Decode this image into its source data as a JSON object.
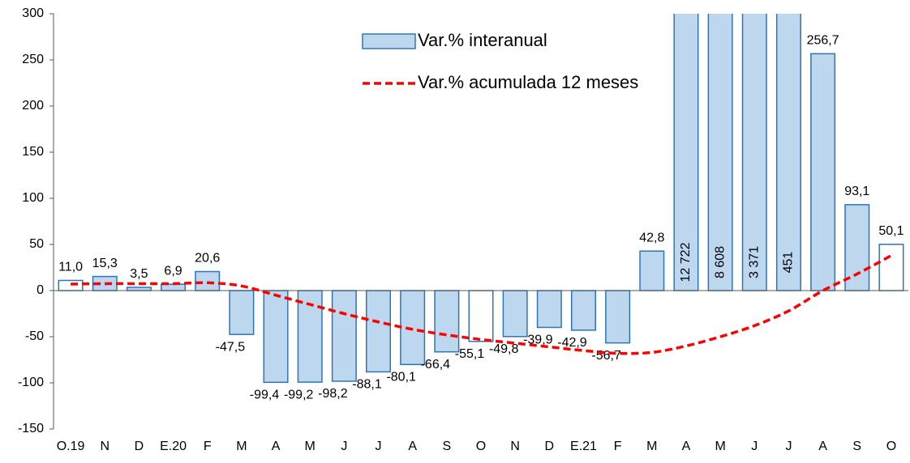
{
  "chart_data": {
    "type": "bar",
    "categories": [
      "O.19",
      "N",
      "D",
      "E.20",
      "F",
      "M",
      "A",
      "M",
      "J",
      "J",
      "A",
      "S",
      "O",
      "N",
      "D",
      "E.21",
      "F",
      "M",
      "A",
      "M",
      "J",
      "J",
      "A",
      "S",
      "O"
    ],
    "series": [
      {
        "name": "Var.% interanual",
        "type": "bar",
        "color": "#bdd7ee",
        "edge_color": "#2e75b6",
        "fill_colors": [
          "#ffffff",
          "#bdd7ee",
          "#bdd7ee",
          "#bdd7ee",
          "#bdd7ee",
          "#bdd7ee",
          "#bdd7ee",
          "#bdd7ee",
          "#bdd7ee",
          "#bdd7ee",
          "#bdd7ee",
          "#bdd7ee",
          "#ffffff",
          "#bdd7ee",
          "#bdd7ee",
          "#bdd7ee",
          "#bdd7ee",
          "#bdd7ee",
          "#bdd7ee",
          "#bdd7ee",
          "#bdd7ee",
          "#bdd7ee",
          "#bdd7ee",
          "#bdd7ee",
          "#ffffff"
        ],
        "values": [
          11.0,
          15.3,
          3.5,
          6.9,
          20.6,
          -47.5,
          -99.4,
          -99.2,
          -98.2,
          -88.1,
          -80.1,
          -66.4,
          -55.1,
          -49.8,
          -39.9,
          -42.9,
          -56.7,
          42.8,
          12722,
          8608,
          3371,
          451,
          256.7,
          93.1,
          50.1
        ],
        "value_labels": [
          "11,0",
          "15,3",
          "3,5",
          "6,9",
          "20,6",
          "-47,5",
          "-99,4",
          "-99,2",
          "-98,2",
          "-88,1",
          "-80,1",
          "-66,4",
          "-55,1",
          "-49,8",
          "-39,9",
          "-42,9",
          "-56,7",
          "42,8",
          "12 722",
          "8 608",
          "3 371",
          "451",
          "256,7",
          "93,1",
          "50,1"
        ]
      },
      {
        "name": "Var.% acumulada 12 meses",
        "type": "line",
        "color": "#ff0000",
        "dashed": true,
        "values": [
          7,
          7.5,
          7.5,
          7.5,
          8.5,
          5,
          -5,
          -15,
          -25,
          -34,
          -42,
          -48,
          -53,
          -57,
          -61,
          -65,
          -68,
          -67,
          -60,
          -50,
          -38,
          -22,
          0,
          18,
          38
        ]
      }
    ],
    "ylim": [
      -150,
      300
    ],
    "yticks": [
      -150,
      -100,
      -50,
      0,
      50,
      100,
      150,
      200,
      250,
      300
    ],
    "legend": "top-center"
  }
}
